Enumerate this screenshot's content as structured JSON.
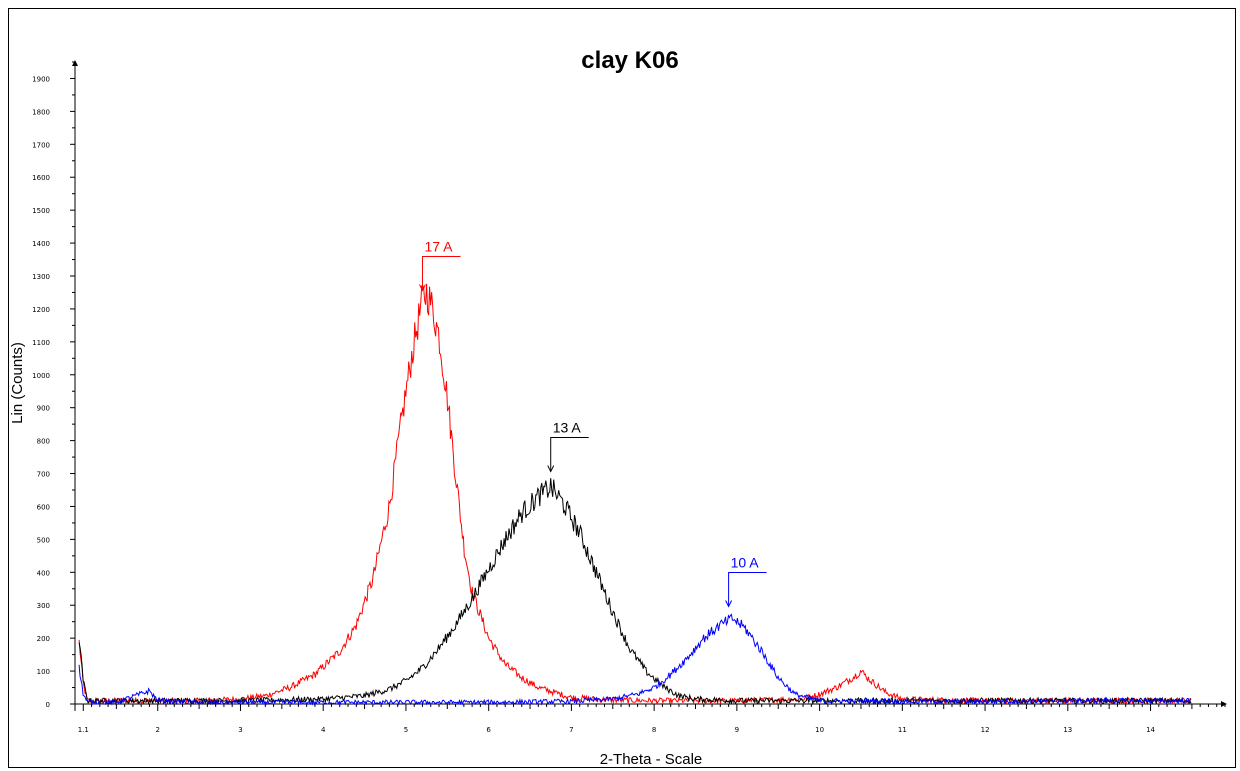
{
  "chart_data": {
    "type": "line",
    "title": "clay K06",
    "xlabel": "2-Theta - Scale",
    "ylabel": "Lin (Counts)",
    "xlim": [
      1.0,
      14.9
    ],
    "ylim": [
      0,
      1950
    ],
    "x_ticks": [
      1.1,
      2,
      3,
      4,
      5,
      6,
      7,
      8,
      9,
      10,
      11,
      12,
      13,
      14
    ],
    "x_tick_labels": [
      "1.1",
      "2",
      "3",
      "4",
      "5",
      "6",
      "7",
      "8",
      "9",
      "10",
      "11",
      "12",
      "13",
      "14"
    ],
    "y_ticks": [
      0,
      100,
      200,
      300,
      400,
      500,
      600,
      700,
      800,
      900,
      1000,
      1100,
      1200,
      1300,
      1400,
      1500,
      1600,
      1700,
      1800,
      1900
    ],
    "y_tick_labels": [
      "0",
      "100",
      "200",
      "300",
      "400",
      "500",
      "600",
      "700",
      "800",
      "900",
      "1000",
      "1100",
      "1200",
      "1300",
      "1400",
      "1500",
      "1600",
      "1700",
      "1800",
      "1900"
    ],
    "grid": false,
    "legend": "none",
    "series": [
      {
        "color": "#ff0000",
        "x": [
          1.05,
          1.1,
          1.15,
          1.5,
          2,
          2.5,
          3,
          3.3,
          3.6,
          3.9,
          4.2,
          4.4,
          4.6,
          4.8,
          4.9,
          5.0,
          5.1,
          5.2,
          5.25,
          5.3,
          5.4,
          5.5,
          5.6,
          5.7,
          5.8,
          6.0,
          6.2,
          6.4,
          6.6,
          6.8,
          7.0,
          7.5,
          8.0,
          9.0,
          9.8,
          10.0,
          10.2,
          10.4,
          10.5,
          10.6,
          10.8,
          11.0,
          11.5,
          12,
          13,
          14,
          14.5
        ],
        "y": [
          190,
          60,
          10,
          10,
          10,
          10,
          15,
          25,
          50,
          90,
          160,
          240,
          380,
          600,
          780,
          950,
          1100,
          1230,
          1250,
          1220,
          1120,
          930,
          700,
          480,
          340,
          200,
          120,
          80,
          50,
          35,
          20,
          12,
          10,
          10,
          15,
          30,
          50,
          80,
          100,
          75,
          35,
          15,
          12,
          10,
          10,
          10,
          10
        ],
        "noise": 8
      },
      {
        "color": "#000000",
        "x": [
          1.05,
          1.1,
          1.15,
          1.5,
          2,
          3,
          4,
          4.5,
          4.8,
          5.0,
          5.2,
          5.4,
          5.6,
          5.8,
          6.0,
          6.2,
          6.4,
          6.6,
          6.75,
          6.9,
          7.1,
          7.3,
          7.5,
          7.7,
          7.9,
          8.1,
          8.3,
          8.5,
          9,
          10,
          11,
          12,
          13,
          14,
          14.5
        ],
        "y": [
          200,
          70,
          10,
          10,
          10,
          10,
          15,
          25,
          45,
          70,
          110,
          170,
          240,
          320,
          410,
          500,
          580,
          630,
          660,
          610,
          520,
          400,
          280,
          170,
          100,
          55,
          25,
          15,
          10,
          10,
          10,
          10,
          10,
          10,
          10
        ],
        "noise": 8
      },
      {
        "color": "#0000ff",
        "x": [
          1.05,
          1.1,
          1.15,
          1.5,
          1.9,
          1.95,
          2.0,
          2.5,
          3,
          4,
          5,
          6,
          7,
          7.5,
          7.8,
          8.0,
          8.2,
          8.4,
          8.6,
          8.8,
          8.95,
          9.1,
          9.3,
          9.5,
          9.7,
          10.0,
          11,
          12,
          13,
          14,
          14.5
        ],
        "y": [
          110,
          30,
          5,
          5,
          40,
          25,
          10,
          5,
          5,
          5,
          5,
          5,
          8,
          15,
          30,
          50,
          90,
          140,
          200,
          240,
          260,
          230,
          160,
          80,
          30,
          10,
          8,
          8,
          10,
          10,
          10
        ],
        "noise": 7
      }
    ],
    "annotations": [
      {
        "text": "17 A",
        "x": 5.2,
        "y": 1250,
        "color": "#ff0000"
      },
      {
        "text": "13 A",
        "x": 6.75,
        "y": 700,
        "color": "#000000"
      },
      {
        "text": "10 A",
        "x": 8.9,
        "y": 290,
        "color": "#0000ff"
      }
    ]
  }
}
